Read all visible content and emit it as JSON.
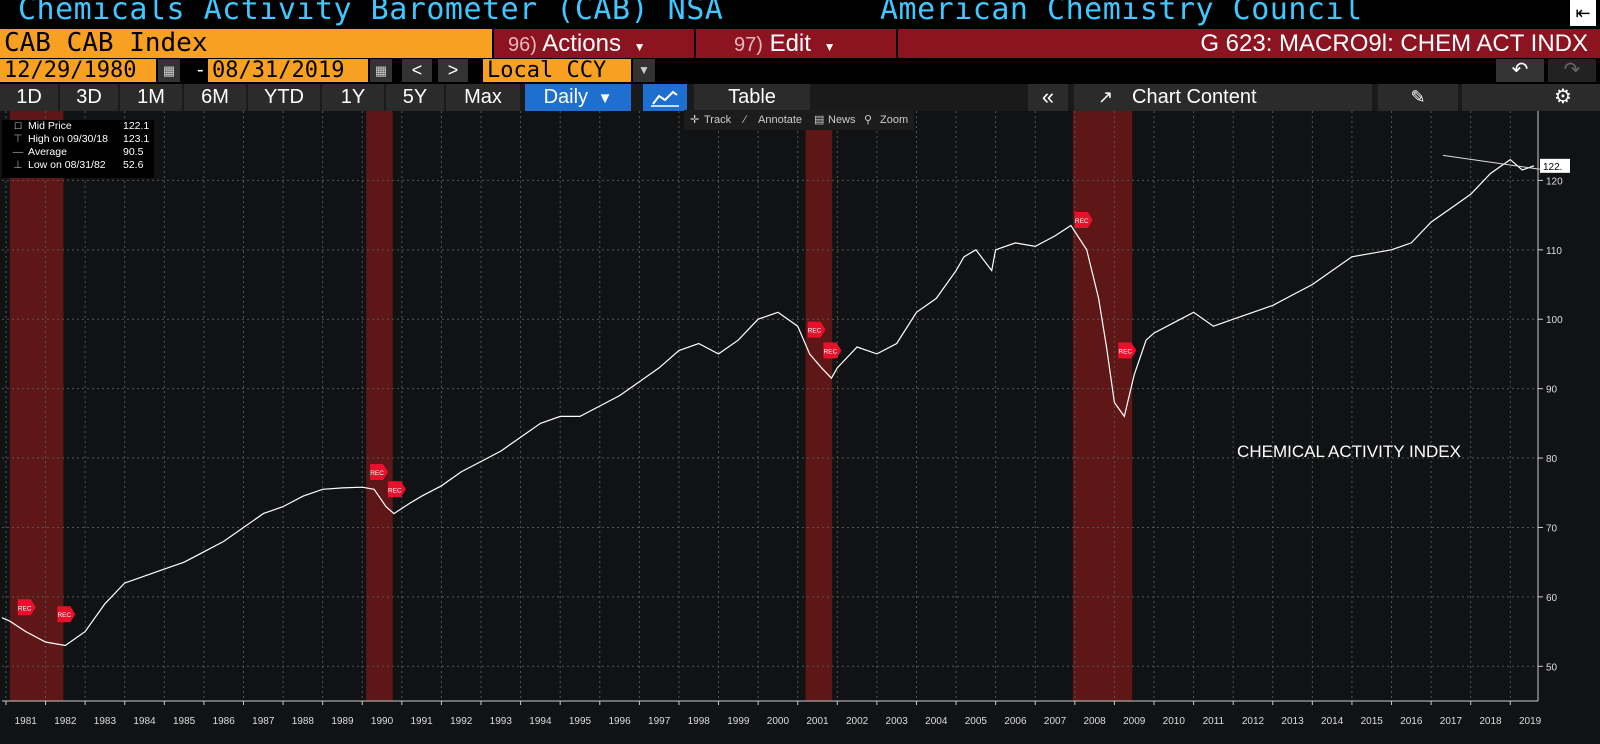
{
  "header": {
    "title_left": "Chemicals Activity Barometer (CAB) NSA",
    "title_right": "American Chemistry Council"
  },
  "row2": {
    "ticker": "CAB CAB Index",
    "actions_num": "96)",
    "actions_label": "Actions",
    "edit_num": "97)",
    "edit_label": "Edit",
    "gline": "G 623: MACRO9l: CHEM ACT INDX"
  },
  "row3": {
    "start_date": "12/29/1980",
    "dash": "-",
    "end_date": "08/31/2019",
    "prev": "<",
    "next": ">",
    "currency": "Local CCY"
  },
  "row4": {
    "ranges": [
      "1D",
      "3D",
      "1M",
      "6M",
      "YTD",
      "1Y",
      "5Y",
      "Max"
    ],
    "daily": "Daily",
    "table": "Table",
    "chart_content": "Chart Content"
  },
  "toolbar": {
    "track": "Track",
    "annotate": "Annotate",
    "news": "News",
    "zoom": "Zoom"
  },
  "legend": [
    {
      "label": "Mid Price",
      "value": "122.1"
    },
    {
      "label": "High on 09/30/18",
      "value": "123.1"
    },
    {
      "label": "Average",
      "value": "90.5"
    },
    {
      "label": "Low on 08/31/82",
      "value": "52.6"
    }
  ],
  "colors": {
    "accent_orange": "#f7a021",
    "accent_red": "#8c1320",
    "title_blue": "#3fc8ff",
    "selected_blue": "#1f6fd0",
    "line": "#ffffff",
    "recession": "#7a1818"
  },
  "chart_data": {
    "type": "line",
    "annotation": "CHEMICAL ACTIVITY INDEX",
    "last_value_label": "122.",
    "xlim": [
      1980.9,
      2019.7
    ],
    "ylim": [
      45,
      130
    ],
    "yticks": [
      50,
      60,
      70,
      80,
      90,
      100,
      110,
      120
    ],
    "xtick_labels": [
      "1981",
      "1982",
      "1983",
      "1984",
      "1985",
      "1986",
      "1987",
      "1988",
      "1989",
      "1990",
      "1991",
      "1992",
      "1993",
      "1994",
      "1995",
      "1996",
      "1997",
      "1998",
      "1999",
      "2000",
      "2001",
      "2002",
      "2003",
      "2004",
      "2005",
      "2006",
      "2007",
      "2008",
      "2009",
      "2010",
      "2011",
      "2012",
      "2013",
      "2014",
      "2015",
      "2016",
      "2017",
      "2018",
      "2019"
    ],
    "grid": true,
    "recessions": [
      [
        1981.1,
        1982.45
      ],
      [
        1990.1,
        1990.77
      ],
      [
        2001.2,
        2001.87
      ],
      [
        2007.95,
        2009.45
      ]
    ],
    "rec_marker_label": "REC",
    "rec_markers": [
      {
        "x": 1981.5,
        "y": 58.5
      },
      {
        "x": 1982.5,
        "y": 57.5
      },
      {
        "x": 1990.4,
        "y": 78
      },
      {
        "x": 1990.85,
        "y": 75.5
      },
      {
        "x": 2001.45,
        "y": 98.5
      },
      {
        "x": 2001.85,
        "y": 95.5
      },
      {
        "x": 2008.2,
        "y": 114.3
      },
      {
        "x": 2009.3,
        "y": 95.5
      }
    ],
    "series": [
      {
        "x": [
          1980.9,
          1981.1,
          1981.5,
          1982.0,
          1982.5,
          1983.0,
          1983.5,
          1984.0,
          1984.5,
          1985.0,
          1985.5,
          1986.0,
          1986.5,
          1987.0,
          1987.5,
          1988.0,
          1988.5,
          1989.0,
          1989.5,
          1990.0,
          1990.3,
          1990.6,
          1990.8,
          1991.2,
          1991.5,
          1992.0,
          1992.5,
          1993.0,
          1993.5,
          1994.0,
          1994.5,
          1995.0,
          1995.5,
          1996.0,
          1996.5,
          1997.0,
          1997.5,
          1998.0,
          1998.5,
          1999.0,
          1999.5,
          2000.0,
          2000.5,
          2001.0,
          2001.3,
          2001.6,
          2001.85,
          2002.0,
          2002.5,
          2003.0,
          2003.5,
          2004.0,
          2004.5,
          2005.0,
          2005.2,
          2005.5,
          2005.9,
          2006.0,
          2006.5,
          2007.0,
          2007.5,
          2007.9,
          2008.3,
          2008.6,
          2008.8,
          2009.0,
          2009.25,
          2009.5,
          2009.8,
          2010.0,
          2010.5,
          2011.0,
          2011.5,
          2012.0,
          2012.5,
          2013.0,
          2013.5,
          2014.0,
          2014.5,
          2015.0,
          2015.5,
          2016.0,
          2016.5,
          2017.0,
          2017.5,
          2018.0,
          2018.5,
          2018.75,
          2019.0,
          2019.3,
          2019.6
        ],
        "values": [
          57,
          56.5,
          55,
          53.5,
          53,
          55,
          59,
          62,
          63,
          64,
          65,
          66.5,
          68,
          70,
          72,
          73,
          74.5,
          75.5,
          75.7,
          75.8,
          75.5,
          73,
          72,
          73.5,
          74.5,
          76,
          78,
          79.5,
          81,
          83,
          85,
          86,
          86,
          87.5,
          89,
          91,
          93,
          95.5,
          96.5,
          95,
          97,
          100,
          101,
          99,
          95,
          93,
          91.5,
          93,
          96,
          95,
          96.5,
          101,
          103,
          107,
          109,
          110,
          107,
          110,
          111,
          110.5,
          112,
          113.5,
          110,
          103,
          96,
          88,
          86,
          92,
          97,
          98,
          99.5,
          101,
          99,
          100,
          101,
          102,
          103.5,
          105,
          107,
          109,
          109.5,
          110,
          111,
          114,
          116,
          118,
          121,
          122,
          123,
          121.5,
          122.1
        ]
      }
    ]
  }
}
